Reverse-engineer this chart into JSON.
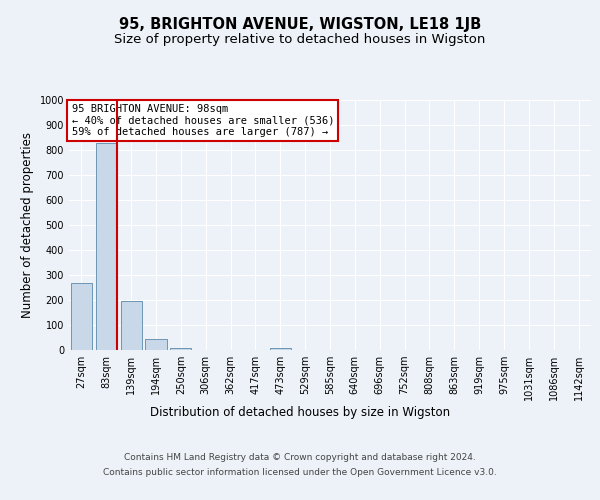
{
  "title": "95, BRIGHTON AVENUE, WIGSTON, LE18 1JB",
  "subtitle": "Size of property relative to detached houses in Wigston",
  "xlabel": "Distribution of detached houses by size in Wigston",
  "ylabel": "Number of detached properties",
  "bin_labels": [
    "27sqm",
    "83sqm",
    "139sqm",
    "194sqm",
    "250sqm",
    "306sqm",
    "362sqm",
    "417sqm",
    "473sqm",
    "529sqm",
    "585sqm",
    "640sqm",
    "696sqm",
    "752sqm",
    "808sqm",
    "863sqm",
    "919sqm",
    "975sqm",
    "1031sqm",
    "1086sqm",
    "1142sqm"
  ],
  "bar_heights": [
    270,
    830,
    197,
    45,
    10,
    0,
    0,
    0,
    10,
    0,
    0,
    0,
    0,
    0,
    0,
    0,
    0,
    0,
    0,
    0,
    0
  ],
  "bar_color": "#c8d8e8",
  "bar_edge_color": "#5a8aaa",
  "highlight_line_color": "#cc0000",
  "annotation_text": "95 BRIGHTON AVENUE: 98sqm\n← 40% of detached houses are smaller (536)\n59% of detached houses are larger (787) →",
  "annotation_box_color": "#ffffff",
  "annotation_box_edge_color": "#cc0000",
  "ylim": [
    0,
    1000
  ],
  "yticks": [
    0,
    100,
    200,
    300,
    400,
    500,
    600,
    700,
    800,
    900,
    1000
  ],
  "footer_line1": "Contains HM Land Registry data © Crown copyright and database right 2024.",
  "footer_line2": "Contains public sector information licensed under the Open Government Licence v3.0.",
  "bg_color": "#edf2f8",
  "plot_bg_color": "#edf2f8",
  "grid_color": "#ffffff",
  "title_fontsize": 10.5,
  "subtitle_fontsize": 9.5,
  "axis_label_fontsize": 8.5,
  "tick_fontsize": 7,
  "annotation_fontsize": 7.5,
  "footer_fontsize": 6.5
}
